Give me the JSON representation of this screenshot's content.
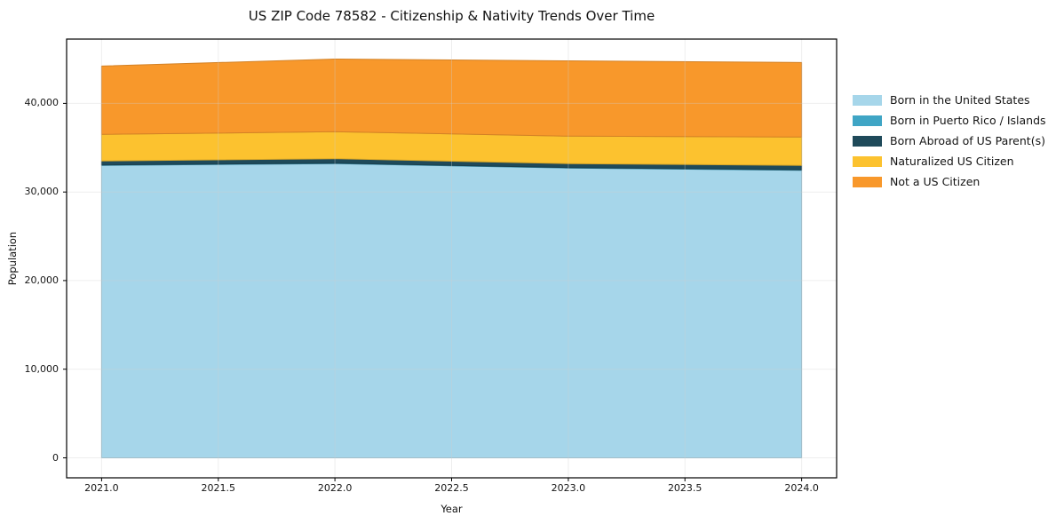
{
  "page": {
    "background": "#ffffff",
    "text_color": "#141414",
    "grid_color": "#cfcfcf",
    "frame_color": "#000000"
  },
  "chart_data": {
    "type": "area",
    "stacked": true,
    "title": "US ZIP Code 78582 - Citizenship & Nativity Trends Over Time",
    "xlabel": "Year",
    "ylabel": "Population",
    "x": [
      2021,
      2022,
      2023,
      2024
    ],
    "series": [
      {
        "name": "Born in the United States",
        "color": "#A6D6EA",
        "values": [
          33000,
          33200,
          32700,
          32450
        ]
      },
      {
        "name": "Born in Puerto Rico / Islands",
        "color": "#3FA5C5",
        "values": [
          50,
          50,
          50,
          50
        ]
      },
      {
        "name": "Born Abroad of US Parent(s)",
        "color": "#1F4A5A",
        "values": [
          450,
          500,
          450,
          500
        ]
      },
      {
        "name": "Naturalized US Citizen",
        "color": "#FCC22F",
        "values": [
          3000,
          3050,
          3100,
          3200
        ]
      },
      {
        "name": "Not a US Citizen",
        "color": "#F8982B",
        "values": [
          7700,
          8200,
          8500,
          8400
        ]
      }
    ],
    "totals": [
      44200,
      45000,
      44800,
      44550
    ],
    "xticks": {
      "values": [
        2021.0,
        2021.5,
        2022.0,
        2022.5,
        2023.0,
        2023.5,
        2024.0
      ],
      "labels": [
        "2021.0",
        "2021.5",
        "2022.0",
        "2022.5",
        "2023.0",
        "2023.5",
        "2024.0"
      ]
    },
    "yticks": {
      "values": [
        0,
        10000,
        20000,
        30000,
        40000
      ],
      "labels": [
        "0",
        "10,000",
        "20,000",
        "30,000",
        "40,000"
      ]
    },
    "xlim": [
      2020.85,
      2024.15
    ],
    "ylim": [
      -2250,
      47250
    ],
    "grid": true,
    "legend_position": "right of plot, no frame"
  }
}
